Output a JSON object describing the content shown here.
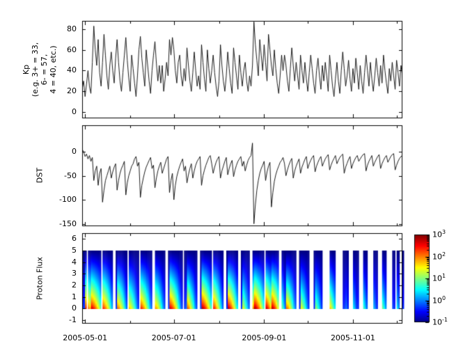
{
  "figure": {
    "background": "#ffffff",
    "axes_color": "#000000",
    "line_color": "#000000"
  },
  "axes_labels": {
    "kp": "Kp\n(e.g. 3+ = 33,\n6- = 57,\n4 = 40, etc.)",
    "dst": "DST",
    "proton": "Proton Flux"
  },
  "x_axis": {
    "start_date": "2005-04-29",
    "domain_days": 220,
    "tick_labels": [
      "2005-05-01",
      "2005-07-01",
      "2005-09-01",
      "2005-11-01"
    ],
    "tick_days": [
      2,
      63,
      125,
      186
    ],
    "minor_tick_days": [
      33,
      94,
      155,
      216
    ]
  },
  "chart_data": [
    {
      "type": "line",
      "name": "Kp",
      "ylabel": "Kp (e.g. 3+ = 33, 6- = 57, 4 = 40, etc.)",
      "color": "#000000",
      "ylim": [
        -6,
        88
      ],
      "yticks": [
        80,
        60,
        40,
        20,
        0
      ],
      "x_unit": "days since 2005-04-29",
      "values": [
        22,
        30,
        15,
        27,
        40,
        25,
        18,
        48,
        83,
        60,
        45,
        70,
        38,
        25,
        48,
        75,
        55,
        35,
        22,
        45,
        58,
        40,
        28,
        52,
        70,
        48,
        30,
        20,
        38,
        55,
        72,
        50,
        33,
        20,
        55,
        42,
        28,
        15,
        35,
        60,
        73,
        52,
        38,
        25,
        60,
        45,
        30,
        18,
        40,
        55,
        68,
        47,
        30,
        45,
        28,
        45,
        20,
        32,
        48,
        35,
        70,
        55,
        72,
        60,
        40,
        28,
        48,
        55,
        35,
        25,
        42,
        30,
        62,
        45,
        30,
        20,
        38,
        58,
        40,
        25,
        35,
        22,
        65,
        48,
        32,
        20,
        60,
        42,
        28,
        40,
        55,
        38,
        25,
        15,
        30,
        65,
        45,
        30,
        20,
        35,
        58,
        42,
        28,
        18,
        62,
        48,
        35,
        22,
        55,
        38,
        25,
        40,
        48,
        30,
        20,
        35,
        25,
        45,
        87,
        65,
        50,
        35,
        70,
        55,
        40,
        65,
        48,
        30,
        75,
        60,
        45,
        35,
        60,
        42,
        28,
        18,
        35,
        55,
        40,
        55,
        45,
        30,
        20,
        42,
        62,
        45,
        30,
        48,
        35,
        22,
        55,
        40,
        28,
        48,
        32,
        20,
        38,
        55,
        42,
        28,
        18,
        40,
        52,
        35,
        22,
        45,
        30,
        48,
        35,
        20,
        55,
        40,
        25,
        15,
        32,
        48,
        30,
        18,
        40,
        58,
        42,
        25,
        35,
        50,
        32,
        20,
        42,
        28,
        52,
        38,
        22,
        45,
        30,
        18,
        38,
        55,
        40,
        25,
        48,
        32,
        20,
        35,
        52,
        38,
        25,
        45,
        28,
        55,
        40,
        28,
        18,
        42,
        30,
        48,
        35,
        22,
        50,
        38,
        25,
        45,
        35
      ]
    },
    {
      "type": "line",
      "name": "DST",
      "ylabel": "DST",
      "color": "#000000",
      "ylim": [
        -155,
        55
      ],
      "yticks": [
        0,
        -50,
        -100,
        -150
      ],
      "x_unit": "days since 2005-04-29",
      "values": [
        5,
        0,
        -10,
        -5,
        -15,
        -8,
        -20,
        -12,
        -60,
        -40,
        -30,
        -70,
        -45,
        -35,
        -105,
        -80,
        -60,
        -50,
        -40,
        -30,
        -55,
        -42,
        -32,
        -25,
        -80,
        -60,
        -45,
        -35,
        -28,
        -20,
        -90,
        -65,
        -50,
        -40,
        -30,
        -25,
        -15,
        -10,
        -30,
        -22,
        -95,
        -70,
        -55,
        -42,
        -32,
        -25,
        -18,
        -12,
        -35,
        -28,
        -75,
        -55,
        -40,
        -30,
        -22,
        -45,
        -35,
        -25,
        -15,
        -10,
        -85,
        -60,
        -45,
        -100,
        -70,
        -52,
        -40,
        -30,
        -22,
        -15,
        -40,
        -30,
        -65,
        -48,
        -35,
        -25,
        -55,
        -40,
        -28,
        -20,
        -15,
        -10,
        -70,
        -50,
        -38,
        -28,
        -20,
        -12,
        -8,
        -25,
        -45,
        -32,
        -22,
        -15,
        -10,
        -55,
        -40,
        -30,
        -20,
        -12,
        -48,
        -35,
        -25,
        -18,
        -52,
        -38,
        -28,
        -20,
        -15,
        -10,
        -30,
        -20,
        -40,
        -28,
        -18,
        -12,
        -8,
        18,
        -150,
        -110,
        -80,
        -60,
        -45,
        -35,
        -28,
        -20,
        -60,
        -42,
        -30,
        -22,
        -115,
        -85,
        -62,
        -48,
        -38,
        -30,
        -22,
        -18,
        -12,
        -25,
        -50,
        -38,
        -28,
        -20,
        -14,
        -55,
        -40,
        -30,
        -22,
        -15,
        -45,
        -32,
        -24,
        -16,
        -10,
        -35,
        -25,
        -18,
        -12,
        -8,
        -42,
        -30,
        -22,
        -15,
        -10,
        -30,
        -22,
        -15,
        -10,
        -6,
        -38,
        -28,
        -20,
        -14,
        -8,
        -25,
        -18,
        -12,
        -8,
        -5,
        -45,
        -32,
        -24,
        -16,
        -10,
        -35,
        -25,
        -18,
        -12,
        -8,
        -20,
        -15,
        -10,
        -6,
        -4,
        -40,
        -28,
        -20,
        -14,
        -8,
        -30,
        -22,
        -16,
        -10,
        -6,
        -35,
        -25,
        -18,
        -12,
        -8,
        -22,
        -16,
        -10,
        -6,
        -4,
        -38,
        -28,
        -20,
        -14,
        -10,
        -8
      ]
    },
    {
      "type": "heatmap",
      "name": "Proton Flux",
      "ylabel": "Proton Flux",
      "ylim": [
        -1.3,
        6.5
      ],
      "yticks": [
        6,
        5,
        4,
        3,
        2,
        1,
        0,
        -1
      ],
      "band": [
        0,
        5
      ],
      "colormap": "jet",
      "scale": "log10",
      "clim": [
        -1,
        3
      ],
      "colorbar_base": "10",
      "colorbar_tick_exponents": [
        "3",
        "2",
        "1",
        "0",
        "-1"
      ],
      "x_unit": "days since 2005-04-29",
      "bottom_log_flux": [
        -0.3,
        -0.2,
        2.5,
        null,
        2.2,
        1.8,
        2.8,
        2.6,
        2.4,
        2.1,
        1.8,
        1.5,
        1.0,
        null,
        2.5,
        2.3,
        2.0,
        1.7,
        1.3,
        0.8,
        0.3,
        null,
        null,
        -0.2,
        2.2,
        2.0,
        1.7,
        1.4,
        1.0,
        0.5,
        0.0,
        null,
        1.8,
        1.6,
        1.3,
        1.0,
        0.6,
        0.2,
        -0.2,
        null,
        2.5,
        2.3,
        2.0,
        1.7,
        1.3,
        0.9,
        0.4,
        0.0,
        null,
        null,
        2.0,
        1.8,
        1.5,
        1.1,
        0.7,
        0.3,
        -0.1,
        null,
        null,
        -0.2,
        2.8,
        2.6,
        2.3,
        2.0,
        1.6,
        1.2,
        0.7,
        0.2,
        -0.2,
        null,
        -0.3,
        0.0,
        2.3,
        2.0,
        1.6,
        1.2,
        0.8,
        0.3,
        -0.1,
        null,
        null,
        -0.2,
        3.0,
        2.8,
        2.5,
        2.2,
        1.8,
        1.4,
        0.9,
        null,
        2.6,
        2.3,
        1.9,
        1.5,
        1.0,
        0.5,
        0.0,
        null,
        null,
        -0.3,
        2.9,
        2.7,
        2.4,
        2.0,
        1.6,
        1.1,
        0.6,
        null,
        null,
        -0.2,
        1.5,
        1.2,
        0.8,
        0.4,
        0.0,
        null,
        null,
        2.0,
        3.0,
        2.8,
        2.5,
        2.2,
        1.8,
        1.4,
        0.9,
        null,
        2.9,
        2.6,
        2.2,
        1.8,
        2.9,
        2.7,
        2.4,
        2.0,
        1.5,
        null,
        null,
        1.0,
        0.5,
        0.0,
        2.2,
        2.0,
        1.7,
        1.3,
        0.9,
        0.4,
        0.0,
        null,
        null,
        -0.3,
        1.6,
        1.3,
        1.0,
        0.6,
        0.2,
        -0.2,
        null,
        null,
        null,
        -0.3,
        1.2,
        0.9,
        0.6,
        0.2,
        -0.2,
        null,
        null,
        null,
        null,
        null,
        1.8,
        1.4,
        1.0,
        0.6,
        null,
        null,
        null,
        null,
        null,
        -0.3,
        -0.2,
        0.0,
        -0.3,
        null,
        null,
        null,
        0.5,
        0.2,
        -0.2,
        -0.3,
        null,
        null,
        null,
        0.8,
        0.4,
        0.0,
        null,
        null,
        null,
        null,
        0.3,
        0.0,
        -0.3,
        null,
        null,
        null,
        1.0,
        0.6,
        0.2,
        null,
        null,
        null,
        null,
        -0.2,
        -0.3,
        null,
        0.5,
        0.1,
        null,
        null,
        -0.3
      ]
    }
  ]
}
